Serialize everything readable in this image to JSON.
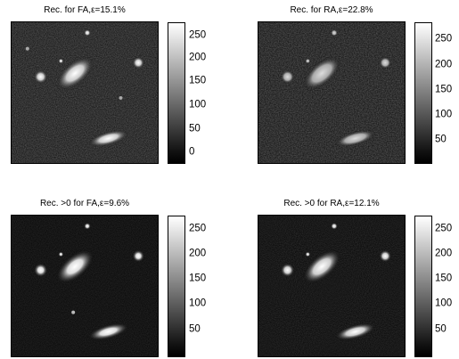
{
  "panels": [
    {
      "title": "Rec. for FA,ε=15.1%",
      "ticks": [
        "250",
        "200",
        "150",
        "100",
        "50",
        "0"
      ]
    },
    {
      "title": "Rec. for RA,ε=22.8%",
      "ticks": [
        "250",
        "200",
        "150",
        "100",
        "50"
      ]
    },
    {
      "title": "Rec. >0 for FA,ε=9.6%",
      "ticks": [
        "250",
        "200",
        "150",
        "100",
        "50"
      ]
    },
    {
      "title": "Rec. >0 for RA,ε=12.1%",
      "ticks": [
        "250",
        "200",
        "150",
        "100",
        "50"
      ]
    }
  ]
}
